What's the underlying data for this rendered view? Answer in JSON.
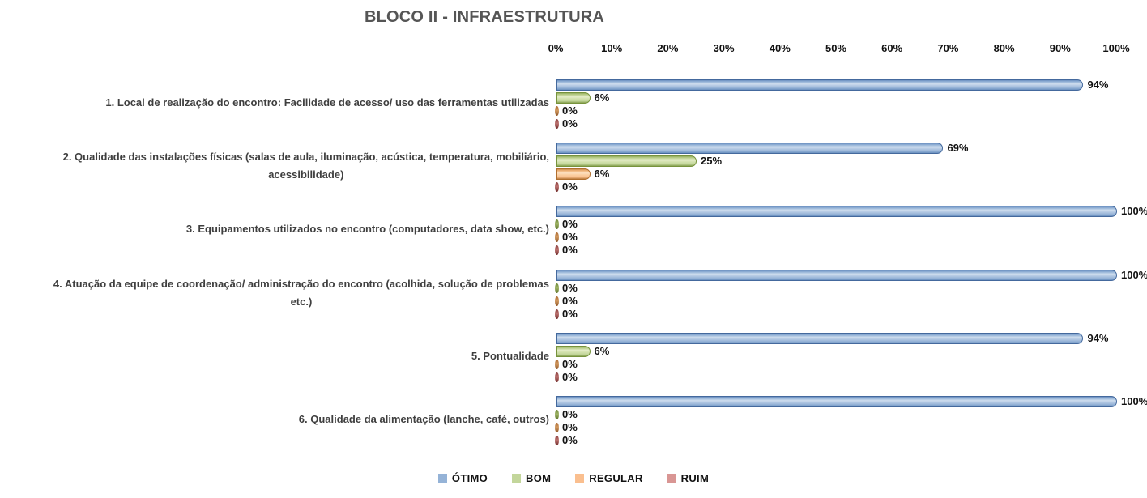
{
  "chart_data": {
    "type": "bar",
    "orientation": "horizontal",
    "title": "BLOCO II - INFRAESTRUTURA",
    "value_suffix": "%",
    "categories": [
      "1. Local de realização do encontro: Facilidade de acesso/ uso das ferramentas utilizadas",
      "2. Qualidade das instalações físicas (salas de aula, iluminação, acústica, temperatura, mobiliário,\nacessibilidade)",
      "3. Equipamentos utilizados no encontro (computadores, data show, etc.)",
      "4. Atuação da equipe de coordenação/ administração do encontro (acolhida, solução de problemas\netc.)",
      "5. Pontualidade",
      "6. Qualidade da alimentação (lanche, café, outros)"
    ],
    "series": [
      {
        "name": "ÓTIMO",
        "color": "#95B3D7",
        "values": [
          94,
          69,
          100,
          100,
          94,
          100
        ]
      },
      {
        "name": "BOM",
        "color": "#C3D69B",
        "values": [
          6,
          25,
          0,
          0,
          6,
          0
        ]
      },
      {
        "name": "REGULAR",
        "color": "#FABF8F",
        "values": [
          0,
          6,
          0,
          0,
          0,
          0
        ]
      },
      {
        "name": "RUIM",
        "color": "#D99694",
        "values": [
          0,
          0,
          0,
          0,
          0,
          0
        ]
      }
    ],
    "x_axis": {
      "min": 0,
      "max": 100,
      "ticks": [
        "0%",
        "10%",
        "20%",
        "30%",
        "40%",
        "50%",
        "60%",
        "70%",
        "80%",
        "90%",
        "100%"
      ]
    },
    "legend": {
      "position": "bottom",
      "items": [
        "ÓTIMO",
        "BOM",
        "REGULAR",
        "RUIM"
      ]
    },
    "grid": false
  }
}
